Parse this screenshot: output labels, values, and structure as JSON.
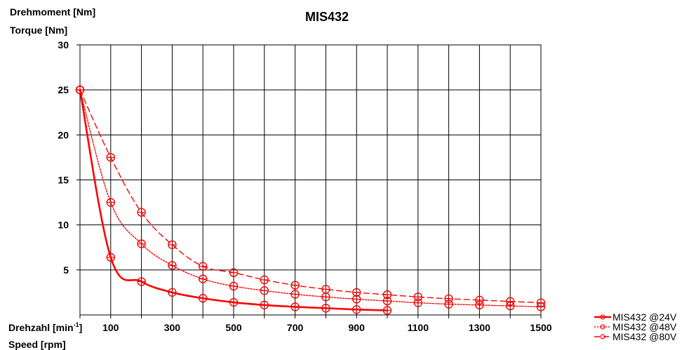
{
  "chart_data": {
    "type": "line",
    "title": "MIS432",
    "ylabel_de": "Drehmoment [Nm]",
    "ylabel_en": "Torque [Nm]",
    "xlabel_de_main": "Drehzahl [min",
    "xlabel_de_sup": "-1",
    "xlabel_de_end": "]",
    "xlabel_en": "Speed [rpm]",
    "xlim": [
      0,
      1500
    ],
    "ylim": [
      0,
      30
    ],
    "x_tick_labels": [
      {
        "value": 100,
        "label": "100"
      },
      {
        "value": 300,
        "label": "300"
      },
      {
        "value": 500,
        "label": "500"
      },
      {
        "value": 700,
        "label": "700"
      },
      {
        "value": 900,
        "label": "900"
      },
      {
        "value": 1100,
        "label": "1100"
      },
      {
        "value": 1300,
        "label": "1300"
      },
      {
        "value": 1500,
        "label": "1500"
      }
    ],
    "x_gridlines": [
      0,
      100,
      200,
      300,
      400,
      500,
      600,
      700,
      800,
      900,
      1000,
      1100,
      1200,
      1300,
      1400,
      1500
    ],
    "y_tick_labels": [
      {
        "value": 5,
        "label": "5"
      },
      {
        "value": 10,
        "label": "10"
      },
      {
        "value": 15,
        "label": "15"
      },
      {
        "value": 20,
        "label": "20"
      },
      {
        "value": 25,
        "label": "25"
      },
      {
        "value": 30,
        "label": "30"
      }
    ],
    "grid": true,
    "legend_position": "bottom-right",
    "series": [
      {
        "name": "MIS432 @24V",
        "color": "#ff0000",
        "line_style": "solid",
        "x": [
          0,
          100,
          200,
          300,
          400,
          500,
          600,
          700,
          800,
          900,
          1000
        ],
        "y": [
          25,
          6.4,
          3.7,
          2.5,
          1.85,
          1.4,
          1.1,
          0.9,
          0.75,
          0.6,
          0.5
        ]
      },
      {
        "name": "MIS432 @48V",
        "color": "#ff0000",
        "line_style": "dotted",
        "x": [
          0,
          100,
          200,
          300,
          400,
          500,
          600,
          700,
          800,
          900,
          1000,
          1100,
          1200,
          1300,
          1400,
          1500
        ],
        "y": [
          25,
          12.5,
          7.9,
          5.5,
          4.0,
          3.2,
          2.7,
          2.3,
          2.0,
          1.75,
          1.55,
          1.35,
          1.2,
          1.1,
          1.0,
          0.9
        ]
      },
      {
        "name": "MIS432 @80V",
        "color": "#ff0000",
        "line_style": "dashed",
        "x": [
          0,
          100,
          200,
          300,
          400,
          500,
          600,
          700,
          800,
          900,
          1000,
          1100,
          1200,
          1300,
          1400,
          1500
        ],
        "y": [
          25,
          17.5,
          11.4,
          7.8,
          5.4,
          4.7,
          3.9,
          3.3,
          2.85,
          2.5,
          2.25,
          2.0,
          1.8,
          1.65,
          1.5,
          1.35
        ]
      }
    ]
  }
}
